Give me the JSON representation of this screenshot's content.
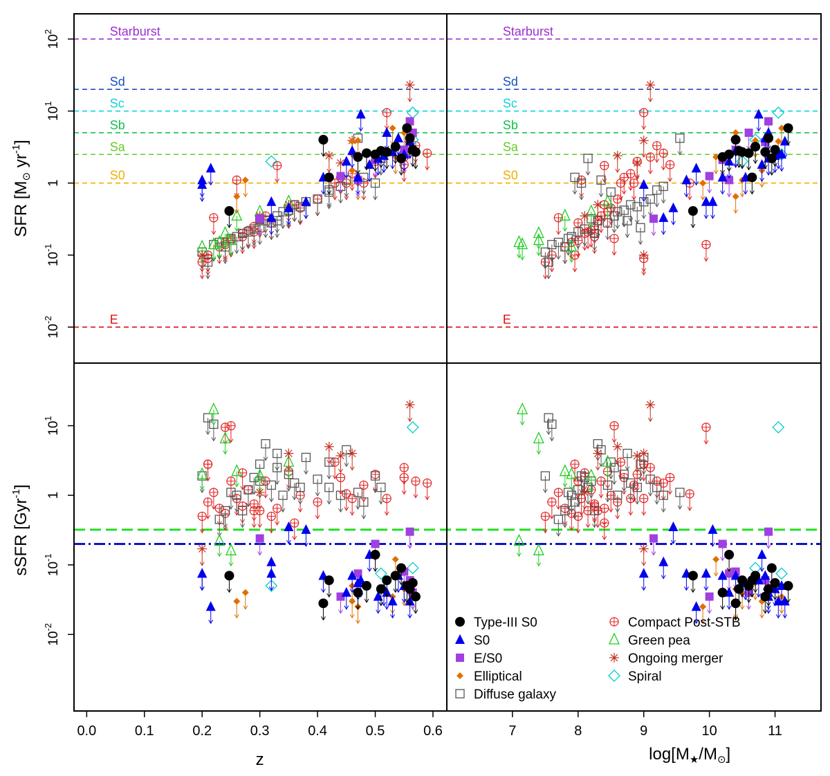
{
  "chart_data": {
    "type": "scatter",
    "title": "",
    "colors": {
      "Type-III S0": "#000000",
      "S0": "#0000ee",
      "E/S0": "#a040e0",
      "Elliptical": "#e07000",
      "Diffuse galaxy": "#555555",
      "Compact Post-STB": "#e02020",
      "Green pea": "#22cc22",
      "Ongoing merger": "#c03020",
      "Spiral": "#00cccc"
    },
    "legend": {
      "position": "bottom-right of lower-right panel",
      "entries": [
        {
          "label": "Type-III S0",
          "class": "Type-III S0",
          "marker": "circle-filled"
        },
        {
          "label": "S0",
          "class": "S0",
          "marker": "triangle-filled"
        },
        {
          "label": "E/S0",
          "class": "E/S0",
          "marker": "square-filled"
        },
        {
          "label": "Elliptical",
          "class": "Elliptical",
          "marker": "diamond-filled"
        },
        {
          "label": "Diffuse galaxy",
          "class": "Diffuse galaxy",
          "marker": "square-open"
        },
        {
          "label": "Compact Post-STB",
          "class": "Compact Post-STB",
          "marker": "circle-plus"
        },
        {
          "label": "Green pea",
          "class": "Green pea",
          "marker": "triangle-open"
        },
        {
          "label": "Ongoing merger",
          "class": "Ongoing merger",
          "marker": "asterisk"
        },
        {
          "label": "Spiral",
          "class": "Spiral",
          "marker": "diamond-open"
        }
      ]
    },
    "axes": {
      "x_left": {
        "label": "z",
        "range": [
          -0.022,
          0.624
        ],
        "ticks": [
          0.0,
          0.1,
          0.2,
          0.3,
          0.4,
          0.5,
          0.6
        ],
        "tick_labels": [
          "0.0",
          "0.1",
          "0.2",
          "0.3",
          "0.4",
          "0.5",
          "0.6"
        ]
      },
      "x_right": {
        "label_main": "log[M",
        "label_sub": "★",
        "label_tail": "/M",
        "label_sun": "⊙",
        "label_end": "]",
        "range": [
          6.0,
          11.7
        ],
        "ticks": [
          7,
          8,
          9,
          10,
          11
        ],
        "tick_labels": [
          "7",
          "8",
          "9",
          "10",
          "11"
        ]
      },
      "y_top": {
        "label": "SFR [M⊙ yr⁻¹]",
        "label_main": "SFR [M",
        "label_sun": "⊙",
        "label_mid": " yr",
        "label_sup": "-1",
        "label_end": "]",
        "scale": "log",
        "range_log10": [
          -2.5,
          2.35
        ]
      },
      "y_bottom": {
        "label": "sSFR [Gyr⁻¹]",
        "label_main": "sSFR [Gyr",
        "label_sup": "-1",
        "label_end": "]",
        "scale": "log",
        "range_log10": [
          -3.1,
          1.9
        ]
      }
    },
    "top_ticks": [
      {
        "log": 2,
        "label": "10",
        "sup": "2"
      },
      {
        "log": 1,
        "label": "10",
        "sup": "1"
      },
      {
        "log": 0,
        "label": "1",
        "sup": ""
      },
      {
        "log": -1,
        "label": "10",
        "sup": "-1"
      },
      {
        "log": -2,
        "label": "10",
        "sup": "-2"
      }
    ],
    "bottom_ticks": [
      {
        "log": 1,
        "label": "10",
        "sup": "1"
      },
      {
        "log": 0,
        "label": "1",
        "sup": ""
      },
      {
        "log": -1,
        "label": "10",
        "sup": "-1"
      },
      {
        "log": -2,
        "label": "10",
        "sup": "-2"
      }
    ],
    "reference_lines_sfr": [
      {
        "label": "Starburst",
        "value": 100,
        "color": "#9a2fd0"
      },
      {
        "label": "Sd",
        "value": 20,
        "color": "#1a4fc0"
      },
      {
        "label": "Sc",
        "value": 10,
        "color": "#11d0dc"
      },
      {
        "label": "Sb",
        "value": 5,
        "color": "#14c050"
      },
      {
        "label": "Sa",
        "value": 2.5,
        "color": "#66cc22"
      },
      {
        "label": "S0",
        "value": 1,
        "color": "#f0b000"
      },
      {
        "label": "E",
        "value": 0.01,
        "color": "#e01010"
      }
    ],
    "reference_lines_ssfr": [
      {
        "value": 0.32,
        "color": "#22dd22",
        "style": "long-dash"
      },
      {
        "value": 0.2,
        "color": "#1111cc",
        "style": "dash-dot"
      }
    ],
    "series": [
      {
        "name": "Type-III S0",
        "marker": "circle-filled",
        "upper": true,
        "points": [
          [
            0.247,
            0.41,
            9.75,
            0.07
          ],
          [
            0.41,
            4.0,
            10.4,
            0.028
          ],
          [
            0.485,
            2.6,
            10.6,
            0.05
          ],
          [
            0.5,
            2.5,
            10.3,
            0.14
          ],
          [
            0.52,
            2.7,
            10.5,
            0.06
          ],
          [
            0.535,
            3.2,
            10.7,
            0.07
          ],
          [
            0.555,
            5.8,
            11.2,
            0.05
          ],
          [
            0.56,
            4.2,
            10.9,
            0.045
          ],
          [
            0.565,
            2.9,
            11.0,
            0.055
          ],
          [
            0.57,
            2.7,
            10.85,
            0.035
          ],
          [
            0.51,
            2.8,
            10.45,
            0.045
          ],
          [
            0.47,
            2.3,
            10.2,
            0.04
          ],
          [
            0.545,
            2.2,
            10.95,
            0.09
          ],
          [
            0.42,
            1.2,
            10.65,
            0.06
          ]
        ]
      },
      {
        "name": "S0",
        "marker": "triangle-filled",
        "upper": true,
        "points": [
          [
            0.2,
            1.1,
            9.65,
            0.075
          ],
          [
            0.215,
            1.6,
            9.8,
            0.025
          ],
          [
            0.32,
            0.55,
            9.95,
            0.075
          ],
          [
            0.38,
            0.55,
            10.05,
            0.32
          ],
          [
            0.41,
            1.2,
            10.2,
            0.07
          ],
          [
            0.45,
            2.0,
            10.3,
            0.04
          ],
          [
            0.46,
            2.8,
            10.4,
            0.07
          ],
          [
            0.475,
            9.0,
            10.75,
            0.06
          ],
          [
            0.49,
            1.8,
            10.8,
            0.14
          ],
          [
            0.52,
            5.0,
            10.9,
            0.04
          ],
          [
            0.53,
            2.7,
            11.05,
            0.03
          ],
          [
            0.55,
            2.5,
            11.1,
            0.05
          ],
          [
            0.56,
            3.8,
            11.15,
            0.03
          ],
          [
            0.35,
            0.45,
            9.45,
            0.35
          ],
          [
            0.47,
            1.2,
            10.55,
            0.055
          ],
          [
            0.505,
            2.2,
            10.9,
            0.035
          ],
          [
            0.54,
            4.2,
            10.85,
            0.07
          ],
          [
            0.515,
            2.4,
            11.0,
            0.045
          ],
          [
            0.32,
            0.33,
            9.3,
            0.11
          ],
          [
            0.2,
            0.95,
            9.0,
            0.075
          ]
        ]
      },
      {
        "name": "E/S0",
        "marker": "square-filled",
        "upper": true,
        "points": [
          [
            0.3,
            0.32,
            9.15,
            0.24
          ],
          [
            0.44,
            1.25,
            10.0,
            0.035
          ],
          [
            0.5,
            2.1,
            10.2,
            0.2
          ],
          [
            0.55,
            2.9,
            10.4,
            0.08
          ],
          [
            0.56,
            7.2,
            10.9,
            0.3
          ],
          [
            0.565,
            5.0,
            10.6,
            0.04
          ],
          [
            0.56,
            3.7,
            10.85,
            0.06
          ],
          [
            0.47,
            1.1,
            10.3,
            0.075
          ]
        ]
      },
      {
        "name": "Elliptical",
        "marker": "diamond-filled",
        "upper": true,
        "points": [
          [
            0.26,
            0.65,
            10.4,
            0.03
          ],
          [
            0.275,
            1.1,
            10.5,
            0.04
          ],
          [
            0.46,
            1.5,
            10.8,
            0.03
          ],
          [
            0.53,
            5.8,
            11.1,
            0.035
          ],
          [
            0.535,
            2.3,
            10.1,
            0.12
          ],
          [
            0.47,
            1.0,
            9.9,
            0.025
          ],
          [
            0.47,
            3.9,
            10.7,
            0.055
          ],
          [
            0.46,
            3.8,
            11.05,
            0.05
          ],
          [
            0.55,
            5.0,
            10.4,
            0.045
          ]
        ]
      },
      {
        "name": "Diffuse galaxy",
        "marker": "square-open",
        "upper": true,
        "points": [
          [
            0.2,
            0.11,
            7.5,
            1.9
          ],
          [
            0.21,
            0.08,
            7.55,
            13.0
          ],
          [
            0.22,
            0.14,
            7.6,
            10.5
          ],
          [
            0.23,
            0.15,
            7.7,
            0.45
          ],
          [
            0.24,
            0.13,
            7.8,
            0.6
          ],
          [
            0.26,
            0.18,
            7.9,
            1.0
          ],
          [
            0.28,
            0.21,
            8.0,
            1.2
          ],
          [
            0.29,
            0.23,
            8.1,
            1.8
          ],
          [
            0.3,
            0.32,
            8.2,
            1.6
          ],
          [
            0.31,
            0.3,
            8.3,
            5.5
          ],
          [
            0.32,
            0.28,
            8.45,
            1.4
          ],
          [
            0.33,
            0.35,
            8.55,
            2.5
          ],
          [
            0.34,
            0.4,
            8.6,
            1.0
          ],
          [
            0.35,
            0.42,
            8.7,
            2.0
          ],
          [
            0.36,
            0.5,
            8.8,
            1.5
          ],
          [
            0.37,
            0.47,
            8.9,
            1.3
          ],
          [
            0.38,
            0.55,
            9.0,
            3.5
          ],
          [
            0.4,
            0.6,
            9.1,
            1.7
          ],
          [
            0.42,
            0.8,
            9.2,
            1.3
          ],
          [
            0.44,
            0.9,
            9.3,
            1.0
          ],
          [
            0.47,
            4.2,
            9.55,
            1.1
          ],
          [
            0.48,
            1.2,
            7.95,
            0.8
          ],
          [
            0.5,
            1.0,
            8.05,
            1.9
          ],
          [
            0.51,
            2.2,
            8.15,
            1.3
          ],
          [
            0.45,
            1.1,
            8.35,
            4.5
          ],
          [
            0.42,
            0.75,
            8.5,
            3.0
          ],
          [
            0.33,
            0.3,
            8.75,
            4.0
          ],
          [
            0.3,
            0.24,
            8.95,
            2.8
          ],
          [
            0.25,
            0.17,
            7.85,
            1.1
          ],
          [
            0.27,
            0.2,
            8.25,
            0.6
          ]
        ]
      },
      {
        "name": "Compact Post-STB",
        "marker": "circle-plus",
        "upper": true,
        "points": [
          [
            0.2,
            0.08,
            7.5,
            0.5
          ],
          [
            0.21,
            0.1,
            7.6,
            0.8
          ],
          [
            0.22,
            0.33,
            7.7,
            1.1
          ],
          [
            0.23,
            0.13,
            7.8,
            0.65
          ],
          [
            0.24,
            0.15,
            7.9,
            0.55
          ],
          [
            0.25,
            0.16,
            8.0,
            1.6
          ],
          [
            0.26,
            1.1,
            8.05,
            0.9
          ],
          [
            0.27,
            0.2,
            8.1,
            2.1
          ],
          [
            0.28,
            0.22,
            8.2,
            1.2
          ],
          [
            0.29,
            0.25,
            8.25,
            0.75
          ],
          [
            0.3,
            0.3,
            8.3,
            0.6
          ],
          [
            0.31,
            0.35,
            8.35,
            1.6
          ],
          [
            0.33,
            1.75,
            8.4,
            0.65
          ],
          [
            0.35,
            0.4,
            8.45,
            2.2
          ],
          [
            0.37,
            0.45,
            8.5,
            1.0
          ],
          [
            0.4,
            0.6,
            8.6,
            0.8
          ],
          [
            0.43,
            1.0,
            8.65,
            3.0
          ],
          [
            0.44,
            1.2,
            8.7,
            1.8
          ],
          [
            0.46,
            1.35,
            8.8,
            0.9
          ],
          [
            0.48,
            1.0,
            8.85,
            1.4
          ],
          [
            0.5,
            2.0,
            8.9,
            2.0
          ],
          [
            0.52,
            9.5,
            9.0,
            0.9
          ],
          [
            0.55,
            2.3,
            9.1,
            2.5
          ],
          [
            0.57,
            3.3,
            9.2,
            1.6
          ],
          [
            0.59,
            2.6,
            9.3,
            1.5
          ],
          [
            0.21,
            0.09,
            9.0,
            2.8
          ],
          [
            0.24,
            0.14,
            9.95,
            9.5
          ],
          [
            0.27,
            0.18,
            8.25,
            0.7
          ],
          [
            0.29,
            0.21,
            8.15,
            0.6
          ],
          [
            0.32,
            0.28,
            8.0,
            0.5
          ],
          [
            0.21,
            0.1,
            7.95,
            2.8
          ],
          [
            0.25,
            0.17,
            8.55,
            10.0
          ],
          [
            0.55,
            1.8,
            9.4,
            1.8
          ],
          [
            0.45,
            1.0,
            9.7,
            1.05
          ],
          [
            0.36,
            0.5,
            8.4,
            0.4
          ]
        ]
      },
      {
        "name": "Green pea",
        "marker": "triangle-open",
        "upper": false,
        "points": [
          [
            0.22,
            0.14,
            7.15,
            17.0
          ],
          [
            0.24,
            0.2,
            7.4,
            6.5
          ],
          [
            0.26,
            0.35,
            7.8,
            2.2
          ],
          [
            0.3,
            0.4,
            8.2,
            1.9
          ],
          [
            0.35,
            0.55,
            8.45,
            3.0
          ],
          [
            0.23,
            0.15,
            7.1,
            0.22
          ],
          [
            0.25,
            0.16,
            7.4,
            0.16
          ],
          [
            0.2,
            0.13,
            7.9,
            2.0
          ]
        ]
      },
      {
        "name": "Ongoing merger",
        "marker": "asterisk",
        "upper": true,
        "points": [
          [
            0.3,
            0.35,
            8.1,
            1.1
          ],
          [
            0.35,
            0.5,
            8.3,
            4.0
          ],
          [
            0.42,
            2.4,
            8.6,
            5.0
          ],
          [
            0.44,
            1.9,
            8.9,
            3.7
          ],
          [
            0.46,
            3.9,
            9.0,
            4.0
          ],
          [
            0.56,
            23.0,
            9.1,
            20.0
          ],
          [
            0.2,
            0.1,
            9.0,
            0.17
          ]
        ]
      },
      {
        "name": "Spiral",
        "marker": "diamond-open",
        "upper": false,
        "points": [
          [
            0.32,
            2.0,
            10.5,
            0.05
          ],
          [
            0.565,
            9.5,
            11.05,
            9.5
          ],
          [
            0.565,
            4.0,
            10.7,
            0.09
          ],
          [
            0.51,
            2.5,
            11.1,
            0.075
          ]
        ]
      }
    ]
  }
}
